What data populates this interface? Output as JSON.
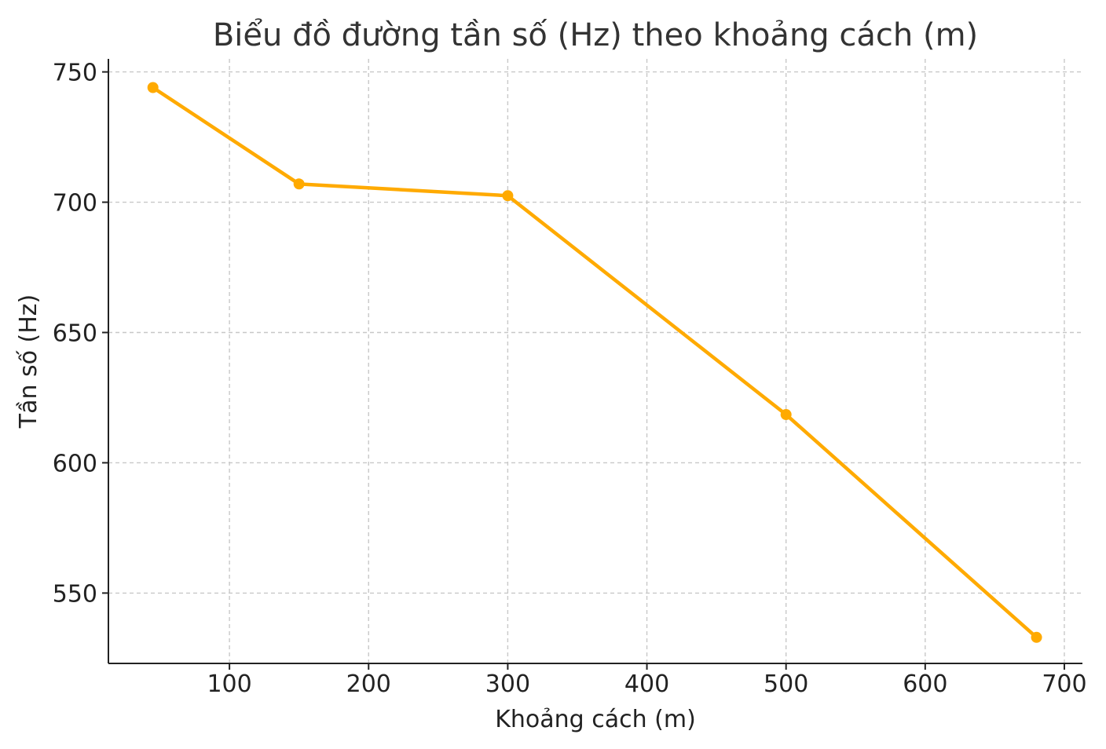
{
  "chart_data": {
    "type": "line",
    "title": "Biểu đồ đường tần số (Hz) theo khoảng cách (m)",
    "xlabel": "Khoảng cách (m)",
    "ylabel": "Tần số (Hz)",
    "x": [
      45,
      150,
      300,
      500,
      680
    ],
    "series": [
      {
        "values": [
          744,
          707,
          702.5,
          618.5,
          533
        ]
      }
    ],
    "xlim": [
      13,
      713
    ],
    "ylim": [
      523,
      755
    ],
    "xticks": [
      100,
      200,
      300,
      400,
      500,
      600,
      700
    ],
    "yticks": [
      550,
      600,
      650,
      700,
      750
    ],
    "grid": true,
    "line_color": "#FFAA00",
    "marker": "circle"
  }
}
